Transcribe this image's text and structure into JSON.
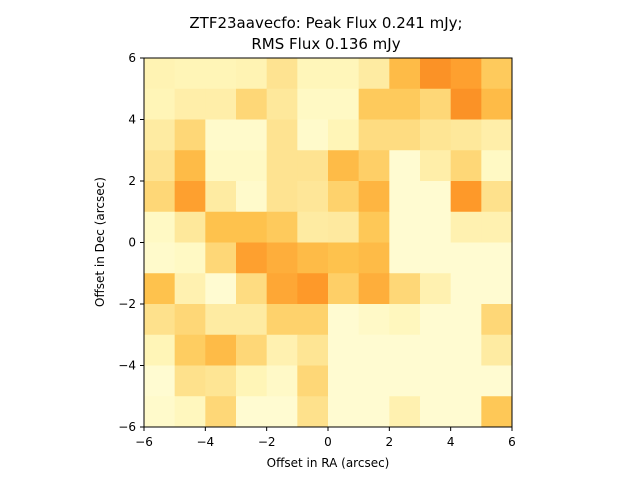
{
  "chart_data": {
    "type": "heatmap",
    "title_line1": "ZTF23aavecfo: Peak Flux 0.241 mJy;",
    "title_line2": "RMS Flux 0.136 mJy",
    "xlabel": "Offset in RA (arcsec)",
    "ylabel": "Offset in Dec (arcsec)",
    "xlim": [
      -6,
      6
    ],
    "ylim": [
      -6,
      6
    ],
    "xticks": [
      -6,
      -4,
      -2,
      0,
      2,
      4,
      6
    ],
    "yticks": [
      -6,
      -4,
      -2,
      0,
      2,
      4,
      6
    ],
    "xtick_labels": [
      "−6",
      "−4",
      "−2",
      "0",
      "2",
      "4",
      "6"
    ],
    "ytick_labels": [
      "−6",
      "−4",
      "−2",
      "0",
      "2",
      "4",
      "6"
    ],
    "colormap": "YlOrBr",
    "value_range": [
      0,
      1
    ],
    "grid": false,
    "cell_values": [
      [
        0.15,
        0.14,
        0.14,
        0.15,
        0.25,
        0.13,
        0.13,
        0.2,
        0.4,
        0.52,
        0.48,
        0.35
      ],
      [
        0.14,
        0.18,
        0.18,
        0.3,
        0.22,
        0.1,
        0.1,
        0.35,
        0.35,
        0.3,
        0.52,
        0.4
      ],
      [
        0.2,
        0.3,
        0.08,
        0.08,
        0.25,
        0.08,
        0.14,
        0.28,
        0.28,
        0.24,
        0.22,
        0.18
      ],
      [
        0.25,
        0.4,
        0.1,
        0.1,
        0.25,
        0.25,
        0.4,
        0.33,
        0.06,
        0.18,
        0.3,
        0.1
      ],
      [
        0.3,
        0.48,
        0.2,
        0.08,
        0.25,
        0.23,
        0.32,
        0.42,
        0.06,
        0.06,
        0.5,
        0.26
      ],
      [
        0.1,
        0.22,
        0.38,
        0.38,
        0.35,
        0.2,
        0.21,
        0.36,
        0.06,
        0.06,
        0.16,
        0.16
      ],
      [
        0.08,
        0.1,
        0.3,
        0.48,
        0.44,
        0.4,
        0.38,
        0.4,
        0.06,
        0.06,
        0.06,
        0.06
      ],
      [
        0.38,
        0.16,
        0.06,
        0.28,
        0.46,
        0.5,
        0.33,
        0.44,
        0.3,
        0.16,
        0.06,
        0.06
      ],
      [
        0.26,
        0.3,
        0.2,
        0.2,
        0.32,
        0.32,
        0.06,
        0.09,
        0.12,
        0.06,
        0.06,
        0.3
      ],
      [
        0.14,
        0.34,
        0.4,
        0.3,
        0.16,
        0.24,
        0.06,
        0.06,
        0.06,
        0.06,
        0.06,
        0.2
      ],
      [
        0.06,
        0.26,
        0.24,
        0.14,
        0.09,
        0.3,
        0.06,
        0.06,
        0.06,
        0.06,
        0.06,
        0.06
      ],
      [
        0.08,
        0.12,
        0.3,
        0.06,
        0.06,
        0.26,
        0.06,
        0.06,
        0.16,
        0.06,
        0.06,
        0.36
      ]
    ]
  }
}
